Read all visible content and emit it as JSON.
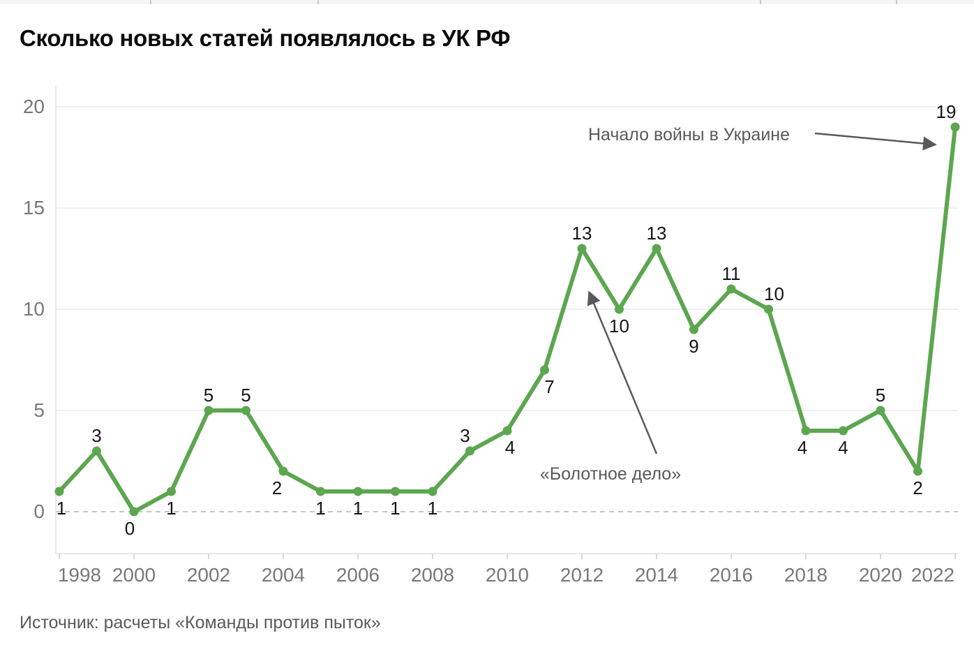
{
  "chart_data": {
    "type": "line",
    "title": "Сколько новых статей появлялось в УК РФ",
    "source": "Источник: расчеты «Команды против пыток»",
    "x": [
      1998,
      1999,
      2000,
      2001,
      2002,
      2003,
      2004,
      2005,
      2006,
      2007,
      2008,
      2009,
      2010,
      2011,
      2012,
      2013,
      2014,
      2015,
      2016,
      2017,
      2018,
      2019,
      2020,
      2021,
      2022
    ],
    "values": [
      1,
      3,
      0,
      1,
      5,
      5,
      2,
      1,
      1,
      1,
      1,
      3,
      4,
      7,
      13,
      10,
      13,
      9,
      11,
      10,
      4,
      4,
      5,
      2,
      19
    ],
    "ylim": [
      0,
      20
    ],
    "yticks": [
      0,
      5,
      10,
      15,
      20
    ],
    "xticks": [
      1998,
      2000,
      2002,
      2004,
      2006,
      2008,
      2010,
      2012,
      2014,
      2016,
      2018,
      2020,
      2022
    ],
    "grid": true,
    "zero_line_dashed": true,
    "line_color": "#5ca64f",
    "value_label_positions": [
      "below",
      "above",
      "below",
      "below",
      "above",
      "above",
      "below",
      "below",
      "below",
      "below",
      "below",
      "above",
      "below",
      "below",
      "above",
      "below",
      "above",
      "below",
      "above",
      "above",
      "below",
      "below",
      "above",
      "below",
      "above"
    ],
    "annotations": [
      {
        "text": "Начало войны в Украине",
        "target_year": 2022,
        "target_value": 19
      },
      {
        "text": "«Болотное дело»",
        "target_year": 2012,
        "target_value": 13
      }
    ]
  }
}
